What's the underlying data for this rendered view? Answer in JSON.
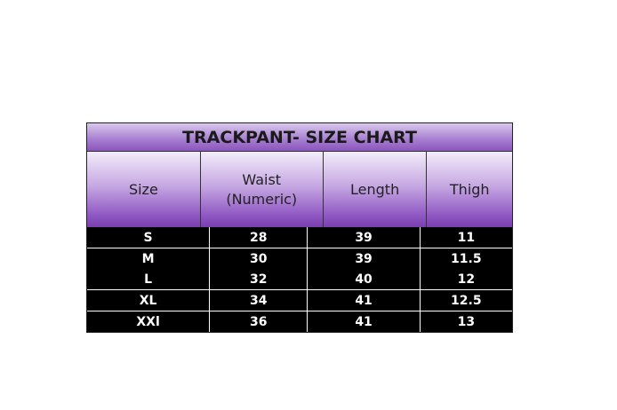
{
  "title": "TRACKPANT- SIZE CHART",
  "headers": [
    "Size",
    "Waist (Numeric)",
    "Length",
    "Thigh"
  ],
  "rows": [
    [
      "S",
      "28",
      "39",
      "11"
    ],
    [
      "M",
      "30",
      "39",
      "11.5"
    ],
    [
      "L",
      "32",
      "40",
      "12"
    ],
    [
      "XL",
      "34",
      "41",
      "12.5"
    ],
    [
      "XXl",
      "36",
      "41",
      "13"
    ]
  ],
  "colors": {
    "header_purple": "#8a55bd",
    "row_bg": "#000000"
  }
}
